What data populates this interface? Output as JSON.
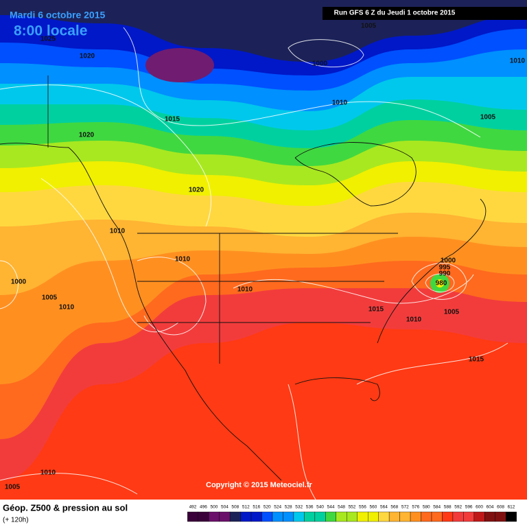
{
  "header": {
    "date": "Mardi 6 octobre 2015",
    "time": "8:00 locale",
    "run": "Run GFS 6 Z du Jeudi 1 octobre 2015"
  },
  "isobar_labels": [
    "1025",
    "1020",
    "1005",
    "1000",
    "1010",
    "1015",
    "1010",
    "1020",
    "1005",
    "1020",
    "1010",
    "1010",
    "1000",
    "1005",
    "1010",
    "1010",
    "1000",
    "995",
    "990",
    "980",
    "1015",
    "1010",
    "1005",
    "1015",
    "1010",
    "1005"
  ],
  "copyright": "Copyright © 2015 Meteociel.fr",
  "legend": {
    "title": "Géop. Z500 & pression au sol",
    "subtitle": "(+ 120h)",
    "scale": [
      492,
      496,
      500,
      504,
      508,
      512,
      516,
      520,
      524,
      528,
      532,
      536,
      540,
      544,
      548,
      552,
      556,
      560,
      564,
      568,
      572,
      576,
      580,
      584,
      588,
      592,
      596,
      600,
      604,
      608,
      612
    ]
  }
}
